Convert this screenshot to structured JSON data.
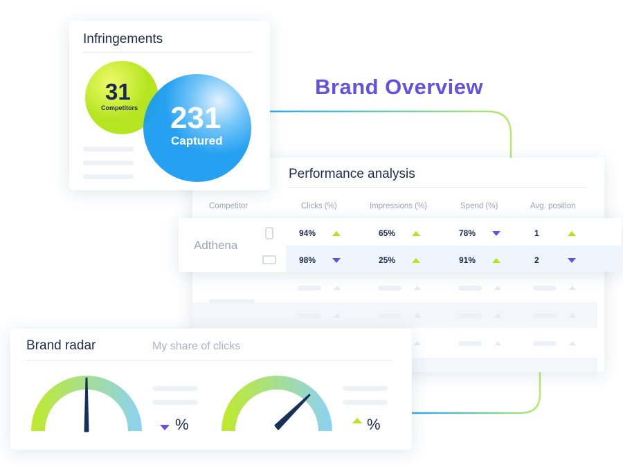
{
  "brand_overview": {
    "title": "Brand Overview"
  },
  "infringements": {
    "title": "Infringements",
    "competitors": {
      "value": "31",
      "label": "Competitors"
    },
    "captured": {
      "value": "231",
      "label": "Captured"
    }
  },
  "performance": {
    "title": "Performance analysis",
    "columns": [
      "Competitor",
      "Clicks (%)",
      "Impressions (%)",
      "Spend (%)",
      "Avg. position"
    ],
    "competitor": "Adthena",
    "rows": [
      [
        "94%",
        "65%",
        "78%",
        "1"
      ],
      [
        "98%",
        "25%",
        "91%",
        "2"
      ]
    ]
  },
  "brand_radar": {
    "title": "Brand radar",
    "subtitle": "My share of clicks",
    "gauges": [
      {
        "unit": "%"
      },
      {
        "unit": "%"
      }
    ]
  }
}
